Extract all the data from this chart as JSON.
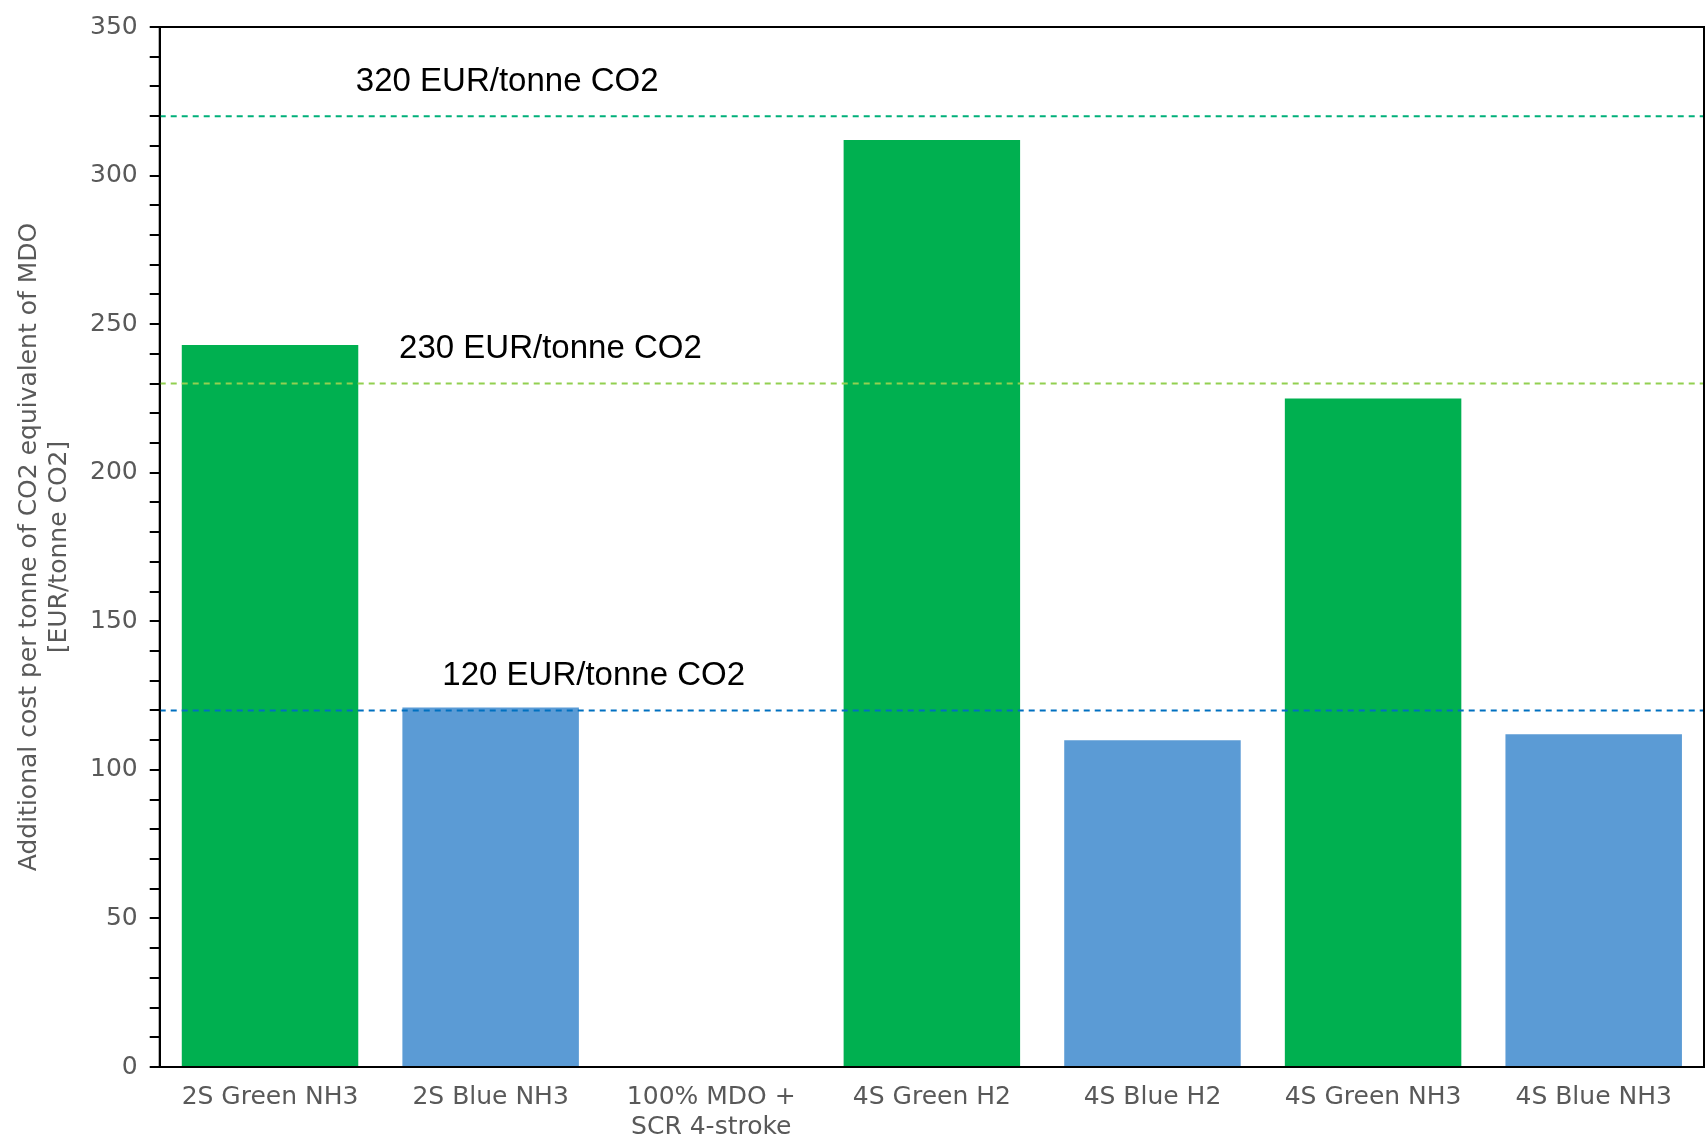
{
  "chart_data": {
    "type": "bar",
    "ylabel": "Additional cost per tonne of CO2 equivalent of MDO [EUR/tonne CO2]",
    "categories": [
      "2S Green NH3",
      "2S Blue NH3",
      "100% MDO + SCR 4-stroke",
      "4S Green H2",
      "4S Blue H2",
      "4S Green NH3",
      "4S Blue NH3"
    ],
    "values": [
      243,
      121,
      0,
      312,
      110,
      225,
      112
    ],
    "colors": [
      "#00b050",
      "#5b9bd5",
      "#5b9bd5",
      "#00b050",
      "#5b9bd5",
      "#00b050",
      "#5b9bd5"
    ],
    "ylim": [
      0,
      350
    ],
    "yticks": [
      0,
      {
        "value": 10,
        "label": null
      },
      {
        "value": 20,
        "label": null
      },
      {
        "value": 30,
        "label": null
      },
      {
        "value": 40,
        "label": null
      },
      50,
      {
        "value": 60,
        "label": null
      },
      {
        "value": 70,
        "label": null
      },
      {
        "value": 80,
        "label": null
      },
      {
        "value": 90,
        "label": null
      },
      100,
      {
        "value": 110,
        "label": null
      },
      {
        "value": 120,
        "label": null
      },
      {
        "value": 130,
        "label": null
      },
      {
        "value": 140,
        "label": null
      },
      150,
      {
        "value": 160,
        "label": null
      },
      {
        "value": 170,
        "label": null
      },
      {
        "value": 180,
        "label": null
      },
      {
        "value": 190,
        "label": null
      },
      200,
      {
        "value": 210,
        "label": null
      },
      {
        "value": 220,
        "label": null
      },
      {
        "value": 230,
        "label": null
      },
      {
        "value": 240,
        "label": null
      },
      250,
      {
        "value": 260,
        "label": null
      },
      {
        "value": 270,
        "label": null
      },
      {
        "value": 280,
        "label": null
      },
      {
        "value": 290,
        "label": null
      },
      300,
      {
        "value": 310,
        "label": null
      },
      {
        "value": 320,
        "label": null
      },
      {
        "value": 330,
        "label": null
      },
      {
        "value": 340,
        "label": null
      },
      350
    ],
    "ref_lines": [
      {
        "axis": "y",
        "value": 320,
        "label": "320 EUR/tonne CO2",
        "color": "#00b07a",
        "line_style": "dashed"
      },
      {
        "axis": "y",
        "value": 230,
        "label": "230 EUR/tonne CO2",
        "color": "#92d050",
        "line_style": "dashed"
      },
      {
        "axis": "y",
        "value": 120,
        "label": "120 EUR/tonne CO2",
        "color": "#0070c0",
        "line_style": "dashed"
      }
    ],
    "grid": false,
    "legend": false
  }
}
